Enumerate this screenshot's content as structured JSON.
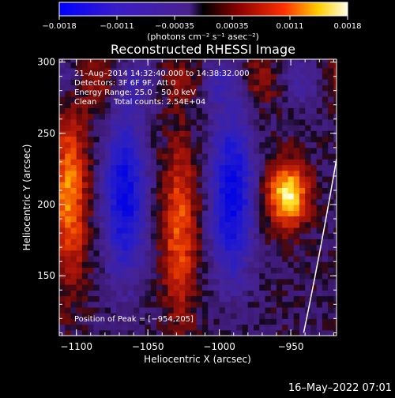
{
  "colorbar": {
    "ticks": [
      "-0.0018",
      "-0.0011",
      "-0.00035",
      "0.00035",
      "0.0011",
      "0.0018"
    ],
    "unit_label": "(photons cm⁻² s⁻¹ asec⁻²)"
  },
  "chart_data": {
    "type": "heatmap",
    "title": "Reconstructed RHESSI Image",
    "xlabel": "Heliocentric X (arcsec)",
    "ylabel": "Heliocentric Y (arcsec)",
    "xlim": [
      -1112,
      -918
    ],
    "ylim": [
      108,
      302
    ],
    "colorscale_range": [
      -0.0018,
      0.0018
    ],
    "xticks": [
      {
        "value": -1100,
        "label": "−1100"
      },
      {
        "value": -1050,
        "label": "−1050"
      },
      {
        "value": -1000,
        "label": "−1000"
      },
      {
        "value": -950,
        "label": "−950"
      }
    ],
    "yticks": [
      {
        "value": 150,
        "label": "150"
      },
      {
        "value": 200,
        "label": "200"
      },
      {
        "value": 250,
        "label": "250"
      },
      {
        "value": 300,
        "label": "300"
      }
    ],
    "annotations": {
      "time": "21–Aug–2014 14:32:40.000 to 14:38:32.000",
      "detectors": "Detectors: 3F 6F 9F, Att 0",
      "energy": "Energy Range: 25.0 – 50.0 keV",
      "method": "Clean",
      "counts": "Total counts: 2.54E+04",
      "peak": "Position of Peak = [−954,205]"
    },
    "peak_position": [
      -954,
      205
    ],
    "features": [
      {
        "kind": "positive",
        "x": -954,
        "y": 205,
        "amplitude": 1.0
      },
      {
        "kind": "positive",
        "x": -1107,
        "y": 205,
        "amplitude": 0.72
      },
      {
        "kind": "positive",
        "x": -1030,
        "y": 180,
        "amplitude": 0.6
      },
      {
        "kind": "negative",
        "x": -1068,
        "y": 205,
        "amplitude": -0.85
      },
      {
        "kind": "negative",
        "x": -993,
        "y": 205,
        "amplitude": -0.9
      }
    ],
    "limb_curve": [
      [
        -941,
        110
      ],
      [
        -929,
        168
      ],
      [
        -918,
        232
      ]
    ]
  },
  "footer": {
    "timestamp": "16–May–2022 07:01"
  }
}
